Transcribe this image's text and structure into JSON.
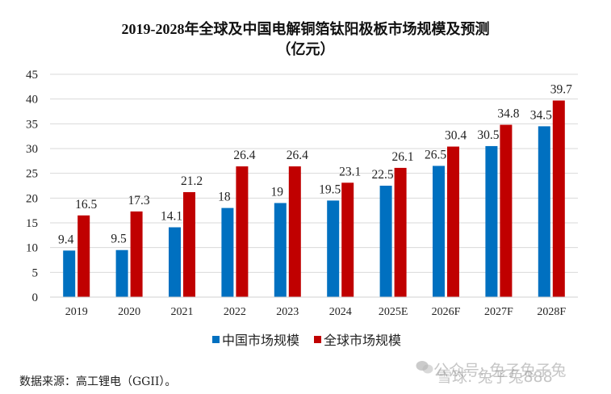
{
  "chart_data": {
    "type": "bar",
    "title": "2019-2028年全球及中国电解铜箔钛阳极板市场规模及预测",
    "subtitle": "（亿元）",
    "xlabel": "",
    "ylabel": "",
    "ylim": [
      0,
      45
    ],
    "yticks": [
      0,
      5,
      10,
      15,
      20,
      25,
      30,
      35,
      40,
      45
    ],
    "grid": true,
    "legend_position": "bottom",
    "categories": [
      "2019",
      "2020",
      "2021",
      "2022",
      "2023",
      "2024",
      "2025E",
      "2026F",
      "2027F",
      "2028F"
    ],
    "series": [
      {
        "name": "中国市场规模",
        "color": "#0070C0",
        "values": [
          9.4,
          9.5,
          14.1,
          18,
          19,
          19.5,
          22.5,
          26.5,
          30.5,
          34.5
        ]
      },
      {
        "name": "全球市场规模",
        "color": "#C00000",
        "values": [
          16.5,
          17.3,
          21.2,
          26.4,
          26.4,
          23.1,
          26.1,
          30.4,
          34.8,
          39.7
        ]
      }
    ]
  },
  "footer": {
    "source": "数据来源：高工锂电（GGII）。",
    "watermark_1": "公众号: 兔子兔子兔",
    "watermark_2": "雪球: 兔子兔888"
  }
}
